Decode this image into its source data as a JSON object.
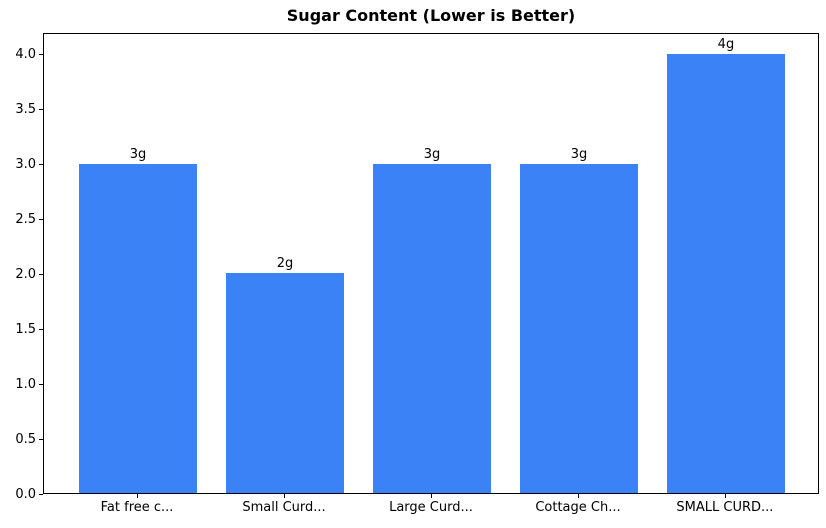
{
  "chart_data": {
    "type": "bar",
    "title": "Sugar Content (Lower is Better)",
    "categories": [
      "Fat free c...",
      "Small Curd...",
      "Large Curd...",
      "Cottage Ch...",
      "SMALL CURD..."
    ],
    "values": [
      3,
      2,
      3,
      3,
      4
    ],
    "bar_labels": [
      "3g",
      "2g",
      "3g",
      "3g",
      "4g"
    ],
    "xlabel": "",
    "ylabel": "",
    "ylim": [
      0,
      4.2
    ],
    "xlim": [
      -0.64,
      4.64
    ],
    "bar_width": 0.8,
    "yticks": {
      "values": [
        0,
        0.5,
        1,
        1.5,
        2,
        2.5,
        3,
        3.5,
        4
      ],
      "labels": [
        "0.0",
        "0.5",
        "1.0",
        "1.5",
        "2.0",
        "2.5",
        "3.0",
        "3.5",
        "4.0"
      ]
    },
    "grid": false,
    "legend": null,
    "colors": {
      "bar": "#3b82f6",
      "text": "#000000",
      "spine": "#000000",
      "background": "#ffffff"
    }
  }
}
